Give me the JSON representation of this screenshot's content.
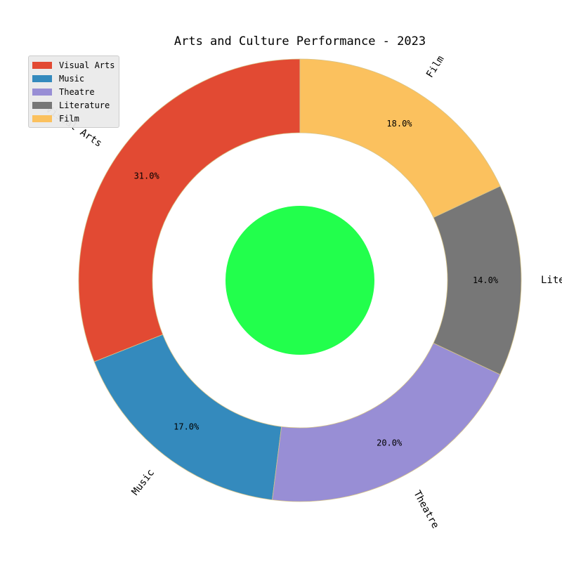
{
  "chart_data": {
    "type": "pie",
    "title": "Arts and Culture Performance - 2023",
    "categories": [
      "Visual Arts",
      "Music",
      "Theatre",
      "Literature",
      "Film"
    ],
    "values": [
      31,
      17,
      20,
      14,
      18
    ],
    "percent_labels": [
      "31.0%",
      "17.0%",
      "20.0%",
      "14.0%",
      "18.0%"
    ],
    "colors": [
      "#e24a33",
      "#348abd",
      "#988ed5",
      "#777777",
      "#fbc15e"
    ],
    "center_color": "#22ff4c",
    "start_angle_deg": 90,
    "direction": "counterclockwise",
    "donut": true,
    "legend_position": "top-left"
  }
}
